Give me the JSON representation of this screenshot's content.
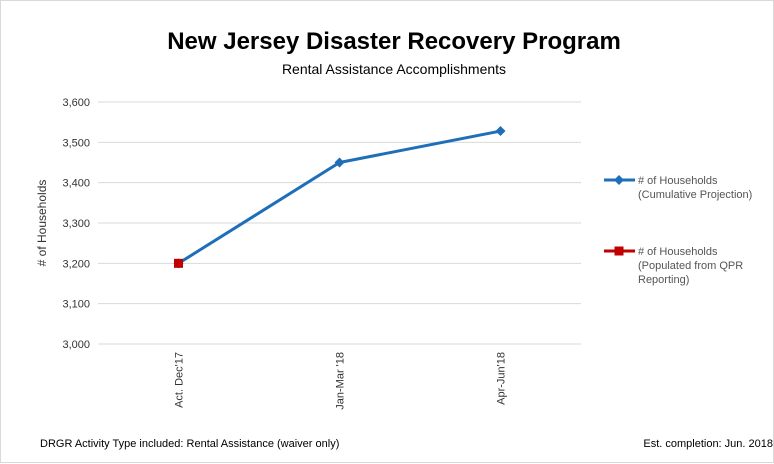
{
  "chart_data": {
    "type": "line",
    "title": "New Jersey Disaster Recovery Program",
    "subtitle": "Rental Assistance Accomplishments",
    "ylabel": "# of Households",
    "xlabel": "",
    "categories": [
      "Act. Dec'17",
      "Jan-Mar '18",
      "Apr-Jun'18"
    ],
    "ylim": [
      3000,
      3600
    ],
    "yticks": [
      3000,
      3100,
      3200,
      3300,
      3400,
      3500,
      3600
    ],
    "ytick_labels": [
      "3,000",
      "3,100",
      "3,200",
      "3,300",
      "3,400",
      "3,500",
      "3,600"
    ],
    "grid": true,
    "legend_position": "right",
    "series": [
      {
        "name": "# of Households (Cumulative Projection)",
        "legend_lines": [
          "# of Households",
          "(Cumulative Projection)"
        ],
        "values": [
          3200,
          3450,
          3528
        ],
        "color": "#1f6fb8",
        "marker": "diamond"
      },
      {
        "name": "# of Households (Populated from QPR Reporting)",
        "legend_lines": [
          "# of Households",
          "(Populated from QPR",
          "Reporting)"
        ],
        "values": [
          3200,
          null,
          null
        ],
        "color": "#c00000",
        "marker": "square"
      }
    ],
    "footer_left": "DRGR Activity Type included: Rental Assistance (waiver only)",
    "footer_right": "Est. completion: Jun. 2018"
  }
}
